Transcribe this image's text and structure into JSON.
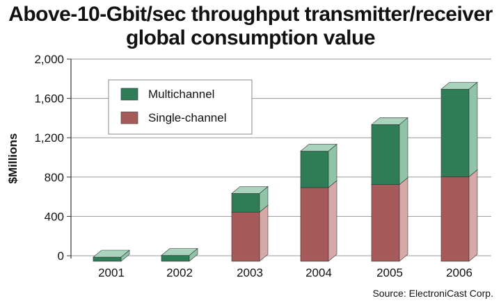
{
  "title_line1": "Above-10-Gbit/sec throughput transmitter/receiver",
  "title_line2": "global consumption value",
  "source": "Source: ElectroniCast Corp.",
  "colors": {
    "multichannel_front": "#2e7d57",
    "multichannel_side": "#8fc4a8",
    "multichannel_top": "#a9d3bd",
    "single_front": "#a65a5a",
    "single_side": "#d7a8a8",
    "single_top": "#e3bcbc",
    "grid": "#9a9a9a"
  },
  "chart_data": {
    "type": "bar",
    "stacked": true,
    "three_d": true,
    "categories": [
      "2001",
      "2002",
      "2003",
      "2004",
      "2005",
      "2006"
    ],
    "series": [
      {
        "name": "Single-channel",
        "values": [
          0,
          0,
          500,
          750,
          780,
          860
        ]
      },
      {
        "name": "Multichannel",
        "values": [
          20,
          60,
          190,
          370,
          610,
          890
        ]
      }
    ],
    "ylabel": "$Millions",
    "xlabel": "",
    "ylim": [
      0,
      2000
    ],
    "yticks": [
      0,
      400,
      800,
      1200,
      1600,
      2000
    ],
    "ytick_labels": [
      "0",
      "400",
      "800",
      "1,200",
      "1,600",
      "2,000"
    ],
    "grid": true,
    "legend_position": "top-left",
    "legend": [
      "Multichannel",
      "Single-channel"
    ]
  }
}
